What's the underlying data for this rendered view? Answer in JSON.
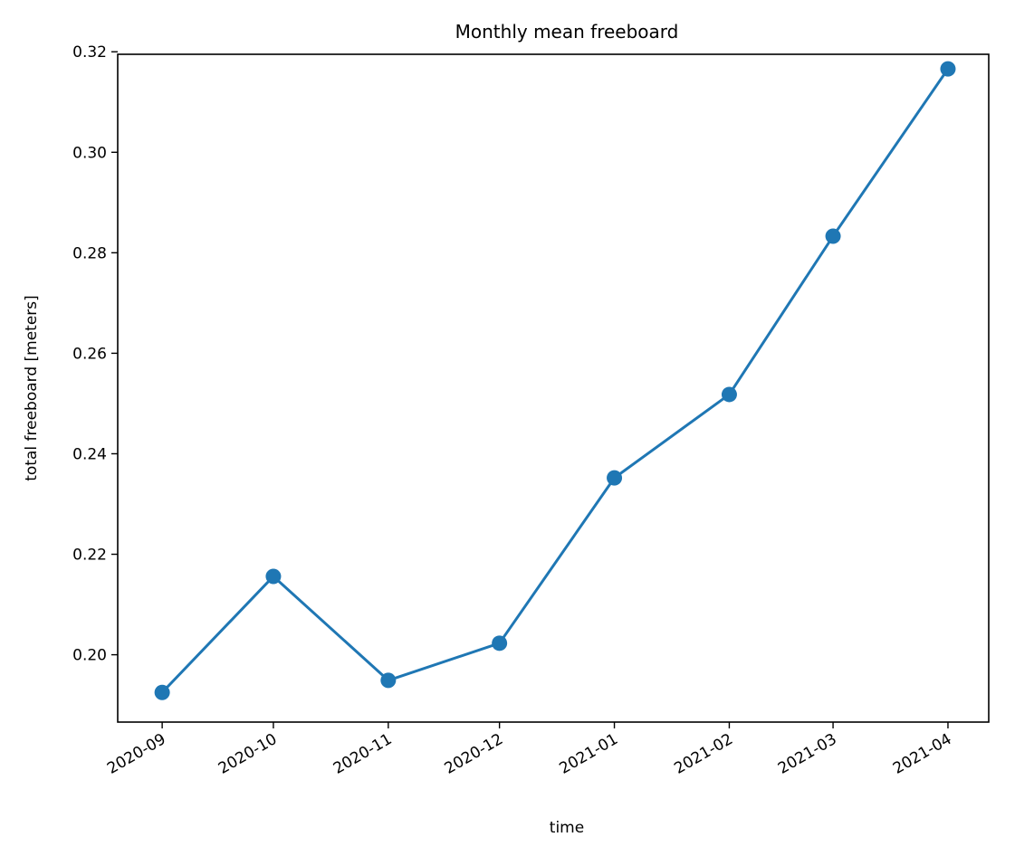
{
  "chart_data": {
    "type": "line",
    "title": "Monthly mean freeboard",
    "xlabel": "time",
    "ylabel": "total freeboard [meters]",
    "categories": [
      "2020-09",
      "2020-10",
      "2020-11",
      "2020-12",
      "2021-01",
      "2021-02",
      "2021-03",
      "2021-04"
    ],
    "x": [
      "2020-09-01",
      "2020-10-01",
      "2020-11-01",
      "2020-12-01",
      "2021-01-01",
      "2021-02-01",
      "2021-03-01",
      "2021-04-01"
    ],
    "series": [
      {
        "values": [
          0.1925,
          0.2156,
          0.1949,
          0.2023,
          0.2352,
          0.2518,
          0.2833,
          0.3166
        ],
        "color": "#1f77b4"
      }
    ],
    "yticks": [
      "0.20",
      "0.22",
      "0.24",
      "0.26",
      "0.28",
      "0.30",
      "0.32"
    ],
    "ylim": [
      0.1866,
      0.3195
    ],
    "xlim": [
      "2020-08-20",
      "2021-04-12"
    ],
    "grid": false,
    "legend": "none",
    "markers": "filled circles"
  }
}
